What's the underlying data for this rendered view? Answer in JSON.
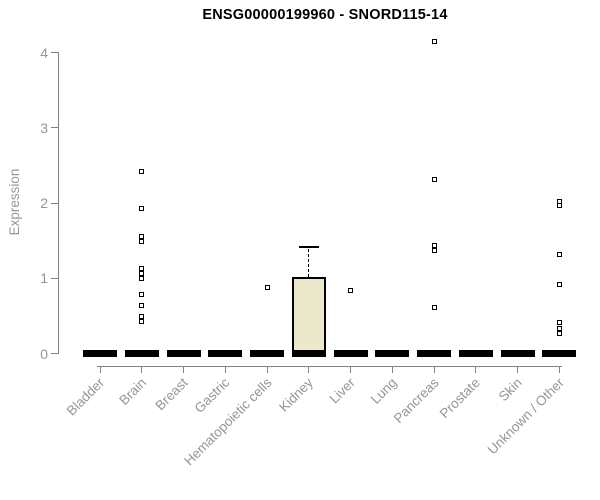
{
  "colors": {
    "title": "#000000",
    "axis_line": "#828282",
    "axis_text": "#969696",
    "mark": "#000000",
    "box_fill": "#ece8cc"
  },
  "chart_data": {
    "type": "boxplot",
    "title": "ENSG00000199960 - SNORD115-14",
    "xlabel": "",
    "ylabel": "Expression",
    "ylim": [
      0,
      4.2
    ],
    "yticks": [
      0,
      1,
      2,
      3,
      4
    ],
    "grid": false,
    "legend": "none",
    "categories": [
      "Bladder",
      "Brain",
      "Breast",
      "Gastric",
      "Hematopoietic cells",
      "Kidney",
      "Liver",
      "Lung",
      "Pancreas",
      "Prostate",
      "Skin",
      "Unknown / Other"
    ],
    "boxes": [
      {
        "category": "Bladder",
        "median": 0,
        "q1": 0,
        "q3": 0,
        "whisker_low": 0,
        "whisker_high": 0,
        "outliers": []
      },
      {
        "category": "Brain",
        "median": 0,
        "q1": 0,
        "q3": 0,
        "whisker_low": 0,
        "whisker_high": 0,
        "outliers": [
          2.42,
          1.93,
          1.55,
          1.49,
          1.13,
          1.06,
          1.0,
          0.79,
          0.64,
          0.49,
          0.43
        ]
      },
      {
        "category": "Breast",
        "median": 0,
        "q1": 0,
        "q3": 0,
        "whisker_low": 0,
        "whisker_high": 0,
        "outliers": []
      },
      {
        "category": "Gastric",
        "median": 0,
        "q1": 0,
        "q3": 0,
        "whisker_low": 0,
        "whisker_high": 0,
        "outliers": []
      },
      {
        "category": "Hematopoietic cells",
        "median": 0,
        "q1": 0,
        "q3": 0,
        "whisker_low": 0,
        "whisker_high": 0,
        "outliers": [
          0.88
        ]
      },
      {
        "category": "Kidney",
        "median": 0,
        "q1": 0,
        "q3": 1.01,
        "whisker_low": 0,
        "whisker_high": 1.42,
        "outliers": []
      },
      {
        "category": "Liver",
        "median": 0,
        "q1": 0,
        "q3": 0,
        "whisker_low": 0,
        "whisker_high": 0,
        "outliers": [
          0.84
        ]
      },
      {
        "category": "Lung",
        "median": 0,
        "q1": 0,
        "q3": 0,
        "whisker_low": 0,
        "whisker_high": 0,
        "outliers": []
      },
      {
        "category": "Pancreas",
        "median": 0,
        "q1": 0,
        "q3": 0,
        "whisker_low": 0,
        "whisker_high": 0,
        "outliers": [
          4.14,
          2.31,
          1.44,
          1.37,
          0.61
        ]
      },
      {
        "category": "Prostate",
        "median": 0,
        "q1": 0,
        "q3": 0,
        "whisker_low": 0,
        "whisker_high": 0,
        "outliers": []
      },
      {
        "category": "Skin",
        "median": 0,
        "q1": 0,
        "q3": 0,
        "whisker_low": 0,
        "whisker_high": 0,
        "outliers": []
      },
      {
        "category": "Unknown / Other",
        "median": 0,
        "q1": 0,
        "q3": 0,
        "whisker_low": 0,
        "whisker_high": 0,
        "outliers": [
          2.02,
          1.97,
          1.32,
          0.92,
          0.41,
          0.33,
          0.27
        ]
      }
    ]
  }
}
